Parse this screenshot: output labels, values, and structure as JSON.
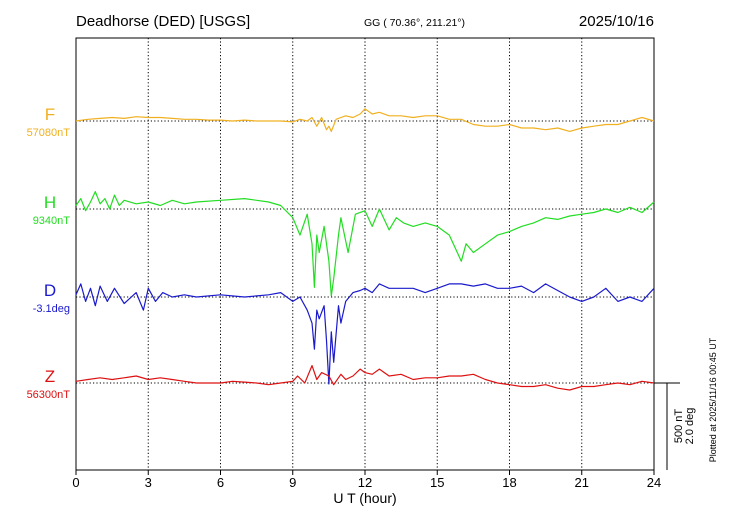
{
  "header": {
    "station": "Deadhorse (DED)  [USGS]",
    "coords": "GG ( 70.36°, 211.21°)",
    "date": "2025/10/16"
  },
  "side_note": "Plotted at 2025/11/16 00:45 UT",
  "scale": {
    "line1": "500 nT",
    "line2": "2.0 deg"
  },
  "colors": {
    "F": "#f0b020",
    "H": "#22dd22",
    "D": "#1a1acc",
    "Z": "#dd1111",
    "grid": "#000000"
  },
  "chart_data": {
    "type": "line",
    "xlabel": "U T (hour)",
    "x_ticks": [
      "0",
      "3",
      "6",
      "9",
      "12",
      "15",
      "18",
      "21",
      "24"
    ],
    "xlim": [
      0,
      24
    ],
    "scale_bar": {
      "nT": 500,
      "deg": 2.0
    },
    "series": [
      {
        "name": "F",
        "baseline_label": "57080nT",
        "unit": "nT",
        "x": [
          0,
          0.5,
          1,
          1.5,
          2,
          2.5,
          3,
          3.5,
          4,
          4.5,
          5,
          5.5,
          6,
          6.5,
          7,
          7.5,
          8,
          8.5,
          9,
          9.3,
          9.6,
          9.8,
          10,
          10.2,
          10.4,
          10.5,
          10.6,
          10.8,
          11,
          11.2,
          11.5,
          11.8,
          12,
          12.3,
          12.6,
          13,
          13.5,
          14,
          14.5,
          15,
          15.5,
          16,
          16.5,
          17,
          17.5,
          18,
          18.5,
          19,
          19.5,
          20,
          20.5,
          21,
          21.5,
          22,
          22.5,
          23,
          23.5,
          24
        ],
        "values": [
          0,
          10,
          15,
          20,
          15,
          25,
          20,
          20,
          15,
          10,
          10,
          5,
          5,
          0,
          5,
          0,
          0,
          0,
          -5,
          10,
          0,
          20,
          -30,
          20,
          -50,
          -30,
          -60,
          10,
          20,
          30,
          20,
          40,
          70,
          40,
          50,
          30,
          30,
          20,
          30,
          30,
          10,
          10,
          -20,
          -30,
          -30,
          -20,
          -40,
          -40,
          -50,
          -40,
          -60,
          -40,
          -30,
          -20,
          -20,
          0,
          20,
          0
        ]
      },
      {
        "name": "H",
        "baseline_label": "9340nT",
        "unit": "nT",
        "x": [
          0,
          0.2,
          0.4,
          0.6,
          0.8,
          1,
          1.2,
          1.4,
          1.6,
          1.8,
          2,
          2.5,
          3,
          3.5,
          4,
          4.5,
          5,
          6,
          7,
          8,
          8.5,
          9,
          9.3,
          9.6,
          9.8,
          9.9,
          10,
          10.1,
          10.3,
          10.5,
          10.6,
          10.7,
          10.9,
          11,
          11.3,
          11.6,
          12,
          12.3,
          12.6,
          13,
          13.3,
          13.6,
          14,
          14.5,
          15,
          15.5,
          16,
          16.2,
          16.5,
          17,
          17.5,
          18,
          18.5,
          19,
          19.5,
          20,
          20.5,
          21,
          21.5,
          22,
          22.5,
          23,
          23.5,
          24
        ],
        "values": [
          20,
          60,
          -10,
          40,
          100,
          30,
          60,
          0,
          80,
          20,
          50,
          30,
          40,
          20,
          50,
          30,
          40,
          50,
          60,
          40,
          20,
          -50,
          -150,
          -30,
          -200,
          -450,
          -150,
          -250,
          -100,
          -300,
          -500,
          -400,
          -150,
          -50,
          -250,
          -30,
          -10,
          -100,
          0,
          -120,
          -50,
          -80,
          -100,
          -80,
          -100,
          -150,
          -300,
          -200,
          -250,
          -200,
          -150,
          -130,
          -100,
          -80,
          -50,
          -60,
          -40,
          -30,
          -20,
          0,
          -20,
          10,
          -20,
          40
        ]
      },
      {
        "name": "D",
        "baseline_label": "-3.1deg",
        "unit": "deg",
        "x": [
          0,
          0.2,
          0.4,
          0.6,
          0.8,
          1,
          1.3,
          1.6,
          2,
          2.5,
          2.8,
          3,
          3.3,
          3.6,
          4,
          4.5,
          5,
          6,
          7,
          8,
          8.5,
          9,
          9.3,
          9.6,
          9.8,
          9.9,
          10,
          10.1,
          10.3,
          10.4,
          10.5,
          10.6,
          10.7,
          10.9,
          11,
          11.2,
          11.5,
          11.8,
          12,
          12.3,
          12.6,
          13,
          13.5,
          14,
          14.5,
          15,
          15.5,
          16,
          16.5,
          17,
          17.5,
          18,
          18.5,
          19,
          19.5,
          20,
          20.5,
          21,
          21.5,
          22,
          22.5,
          23,
          23.5,
          24
        ],
        "values": [
          0.05,
          0.3,
          -0.1,
          0.2,
          -0.2,
          0.25,
          -0.1,
          0.2,
          -0.15,
          0.1,
          -0.3,
          0.2,
          -0.1,
          0.1,
          0,
          0.05,
          0,
          0.05,
          0,
          0.05,
          0.1,
          -0.1,
          0,
          -0.3,
          -0.6,
          -1.2,
          -0.3,
          -0.5,
          -0.2,
          -1.0,
          -2.0,
          -0.8,
          -1.5,
          -0.2,
          -0.6,
          -0.1,
          0.1,
          0.15,
          0.2,
          0.1,
          0.3,
          0.2,
          0.2,
          0.2,
          0.1,
          0.2,
          0.3,
          0.3,
          0.25,
          0.3,
          0.2,
          0.2,
          0.25,
          0.1,
          0.3,
          0.15,
          0,
          -0.1,
          0,
          0.2,
          -0.1,
          0,
          -0.1,
          0.2
        ]
      },
      {
        "name": "Z",
        "baseline_label": "56300nT",
        "unit": "nT",
        "x": [
          0,
          0.5,
          1,
          1.5,
          2,
          2.5,
          3,
          3.5,
          4,
          4.5,
          5,
          5.5,
          6,
          6.5,
          7,
          7.5,
          8,
          8.5,
          9,
          9.2,
          9.5,
          9.8,
          10,
          10.2,
          10.5,
          10.7,
          11,
          11.2,
          11.5,
          11.8,
          12,
          12.3,
          12.6,
          13,
          13.5,
          14,
          14.5,
          15,
          15.5,
          16,
          16.5,
          17,
          17.5,
          18,
          18.5,
          19,
          19.5,
          20,
          20.5,
          21,
          21.5,
          22,
          22.5,
          23,
          23.5,
          24
        ],
        "values": [
          10,
          20,
          30,
          20,
          30,
          40,
          20,
          30,
          20,
          10,
          0,
          0,
          0,
          10,
          5,
          0,
          -10,
          0,
          10,
          40,
          0,
          100,
          20,
          60,
          40,
          -10,
          50,
          20,
          40,
          80,
          60,
          50,
          80,
          40,
          50,
          20,
          30,
          30,
          40,
          40,
          50,
          20,
          0,
          -10,
          -20,
          -20,
          -10,
          -30,
          -40,
          -20,
          -20,
          -10,
          0,
          -10,
          10,
          0
        ]
      }
    ]
  }
}
